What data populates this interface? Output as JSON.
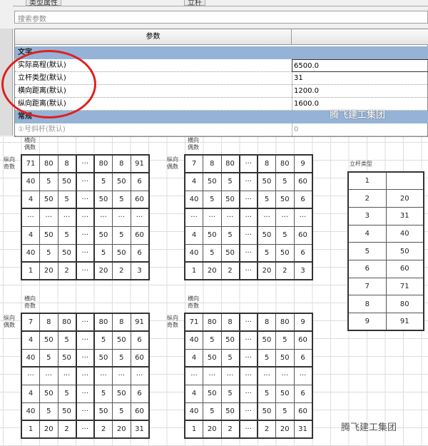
{
  "panel": {
    "tabs": [
      "类型属性",
      "立杆"
    ],
    "search_placeholder": "搜索参数",
    "column_header": "参数",
    "groups": [
      {
        "label": "文字",
        "rows": [
          {
            "name": "实际高程(默认)",
            "value": "6500.0"
          },
          {
            "name": "立杆类型(默认)",
            "value": "31"
          },
          {
            "name": "横向距离(默认)",
            "value": "1200.0"
          },
          {
            "name": "纵向距离(默认)",
            "value": "1600.0"
          }
        ]
      },
      {
        "label": "常规",
        "rows": [
          {
            "name": "①号斜杆(默认)",
            "value": "0"
          }
        ]
      }
    ],
    "annotation_color": "#e02020",
    "group_color": "#95b3d7"
  },
  "watermark": "腾飞建工集团",
  "matrices": [
    {
      "col_label": "横向偶数",
      "row_label": "纵向奇数",
      "rows": [
        [
          "71",
          "80",
          "8",
          "···",
          "80",
          "8",
          "91"
        ],
        [
          "40",
          "5",
          "50",
          "···",
          "5",
          "50",
          "6"
        ],
        [
          "4",
          "50",
          "5",
          "···",
          "50",
          "5",
          "60"
        ],
        [
          "···",
          "···",
          "···",
          "···",
          "···",
          "···",
          "···"
        ],
        [
          "4",
          "50",
          "5",
          "···",
          "50",
          "5",
          "60"
        ],
        [
          "40",
          "5",
          "50",
          "···",
          "5",
          "50",
          "6"
        ],
        [
          "1",
          "20",
          "2",
          "···",
          "20",
          "2",
          "3"
        ]
      ]
    },
    {
      "col_label": "横向偶数",
      "row_label": "纵向偶数",
      "rows": [
        [
          "7",
          "8",
          "80",
          "···",
          "8",
          "80",
          "9"
        ],
        [
          "4",
          "50",
          "5",
          "···",
          "50",
          "5",
          "60"
        ],
        [
          "40",
          "5",
          "50",
          "···",
          "5",
          "50",
          "6"
        ],
        [
          "···",
          "···",
          "···",
          "···",
          "···",
          "···",
          "···"
        ],
        [
          "4",
          "50",
          "5",
          "···",
          "50",
          "5",
          "60"
        ],
        [
          "40",
          "5",
          "50",
          "···",
          "5",
          "50",
          "6"
        ],
        [
          "1",
          "20",
          "2",
          "···",
          "20",
          "2",
          "3"
        ]
      ]
    },
    {
      "col_label": "横向奇数",
      "row_label": "纵向偶数",
      "rows": [
        [
          "7",
          "8",
          "80",
          "···",
          "80",
          "8",
          "91"
        ],
        [
          "4",
          "50",
          "5",
          "···",
          "5",
          "50",
          "6"
        ],
        [
          "40",
          "5",
          "50",
          "···",
          "50",
          "5",
          "60"
        ],
        [
          "···",
          "···",
          "···",
          "···",
          "···",
          "···",
          "···"
        ],
        [
          "4",
          "50",
          "5",
          "···",
          "5",
          "50",
          "6"
        ],
        [
          "40",
          "5",
          "50",
          "···",
          "50",
          "5",
          "60"
        ],
        [
          "1",
          "20",
          "2",
          "···",
          "2",
          "20",
          "31"
        ]
      ]
    },
    {
      "col_label": "横向奇数",
      "row_label": "纵向奇数",
      "rows": [
        [
          "71",
          "80",
          "8",
          "···",
          "8",
          "80",
          "9"
        ],
        [
          "40",
          "5",
          "50",
          "···",
          "50",
          "5",
          "60"
        ],
        [
          "4",
          "50",
          "5",
          "···",
          "5",
          "50",
          "6"
        ],
        [
          "···",
          "···",
          "···",
          "···",
          "···",
          "···",
          "···"
        ],
        [
          "4",
          "50",
          "5",
          "···",
          "5",
          "50",
          "6"
        ],
        [
          "40",
          "5",
          "50",
          "···",
          "50",
          "5",
          "60"
        ],
        [
          "1",
          "20",
          "2",
          "···",
          "2",
          "20",
          "31"
        ]
      ]
    }
  ],
  "pole_types": {
    "label": "立杆类型",
    "rows": [
      [
        "1",
        ""
      ],
      [
        "2",
        "20"
      ],
      [
        "3",
        "31"
      ],
      [
        "4",
        "40"
      ],
      [
        "5",
        "50"
      ],
      [
        "6",
        "60"
      ],
      [
        "7",
        "71"
      ],
      [
        "8",
        "80"
      ],
      [
        "9",
        "91"
      ]
    ]
  }
}
